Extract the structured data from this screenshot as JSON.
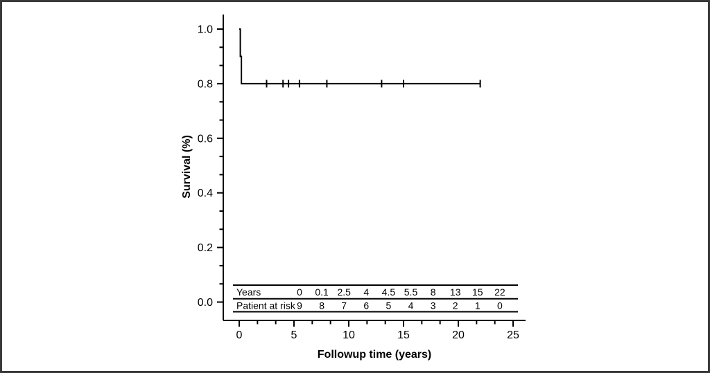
{
  "window": {
    "background": "#ffffff",
    "frame_color": "#3a3a3a"
  },
  "chart_data": {
    "type": "line",
    "subtype": "kaplan-meier-step-curve",
    "title": "",
    "xlabel": "Followup time (years)",
    "ylabel": "Survival (%)",
    "grid": false,
    "legend": false,
    "line_color": "#000000",
    "x_axis": {
      "range": [
        0,
        25
      ],
      "major_ticks": [
        0,
        5,
        10,
        15,
        20,
        25
      ],
      "tick_labels": [
        "0",
        "5",
        "10",
        "15",
        "20",
        "25"
      ],
      "minor_ticks_between_majors": 2
    },
    "y_axis": {
      "range": [
        0.0,
        1.0
      ],
      "major_ticks": [
        1.0,
        0.8,
        0.6,
        0.4,
        0.2,
        0.0
      ],
      "tick_labels": [
        "1.0",
        "0.8",
        "0.6",
        "0.4",
        "0.2",
        "0.0"
      ],
      "minor_ticks_between_majors": 2
    },
    "series": [
      {
        "name": "Survival",
        "color": "#000000",
        "steps": [
          {
            "t": 0,
            "s": 1.0
          },
          {
            "t": 0.1,
            "s": 0.9
          },
          {
            "t": 0.2,
            "s": 0.8
          }
        ],
        "end_t": 22,
        "censor_times": [
          2.5,
          4,
          4.5,
          5.5,
          8,
          13,
          15,
          22
        ]
      }
    ],
    "risk_table": {
      "rows": [
        {
          "label": "Years",
          "values": [
            "0",
            "0.1",
            "2.5",
            "4",
            "4.5",
            "5.5",
            "8",
            "13",
            "15",
            "22"
          ]
        },
        {
          "label": "Patient at risk",
          "values": [
            "9",
            "8",
            "7",
            "6",
            "5",
            "4",
            "3",
            "2",
            "1",
            "0"
          ]
        }
      ]
    }
  }
}
